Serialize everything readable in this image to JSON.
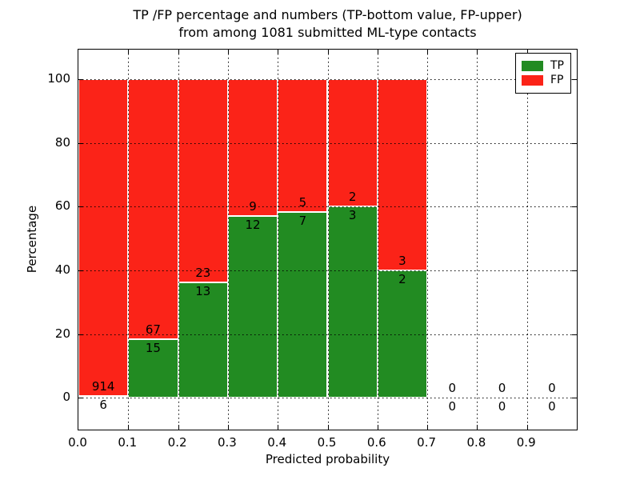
{
  "figure": {
    "title_line1": "TP /FP percentage and numbers (TP-bottom value, FP-upper)",
    "title_line2": "from among 1081 submitted ML-type contacts"
  },
  "chart_data": {
    "type": "bar",
    "stacked": true,
    "normalized_to": 100,
    "title": "TP /FP percentage and numbers (TP-bottom value, FP-upper) from among 1081 submitted ML-type contacts",
    "xlabel": "Predicted probability",
    "ylabel": "Percentage",
    "xlim": [
      0.0,
      1.0
    ],
    "ylim": [
      -10,
      109.3
    ],
    "xticks": [
      "0.0",
      "0.1",
      "0.2",
      "0.3",
      "0.4",
      "0.5",
      "0.6",
      "0.7",
      "0.8",
      "0.9"
    ],
    "yticks": [
      0,
      20,
      40,
      60,
      80,
      100
    ],
    "grid": "dotted",
    "colors": {
      "tp": "#228B22",
      "fp": "#FB2318",
      "bar_edge": "#ffffff",
      "axes": "#000000"
    },
    "legend": {
      "position": "upper right",
      "entries": [
        {
          "label": "TP",
          "color": "#228B22"
        },
        {
          "label": "FP",
          "color": "#FB2318"
        }
      ]
    },
    "bins": [
      {
        "x0": 0.0,
        "x1": 0.1,
        "tp": 6,
        "fp": 914,
        "tp_pct": 0.65
      },
      {
        "x0": 0.1,
        "x1": 0.2,
        "tp": 15,
        "fp": 67,
        "tp_pct": 18.29
      },
      {
        "x0": 0.2,
        "x1": 0.3,
        "tp": 13,
        "fp": 23,
        "tp_pct": 36.11
      },
      {
        "x0": 0.3,
        "x1": 0.4,
        "tp": 12,
        "fp": 9,
        "tp_pct": 57.14
      },
      {
        "x0": 0.4,
        "x1": 0.5,
        "tp": 7,
        "fp": 5,
        "tp_pct": 58.33
      },
      {
        "x0": 0.5,
        "x1": 0.6,
        "tp": 3,
        "fp": 2,
        "tp_pct": 60.0
      },
      {
        "x0": 0.6,
        "x1": 0.7,
        "tp": 2,
        "fp": 3,
        "tp_pct": 40.0
      },
      {
        "x0": 0.7,
        "x1": 0.8,
        "tp": 0,
        "fp": 0,
        "tp_pct": 0
      },
      {
        "x0": 0.8,
        "x1": 0.9,
        "tp": 0,
        "fp": 0,
        "tp_pct": 0
      },
      {
        "x0": 0.9,
        "x1": 1.0,
        "tp": 0,
        "fp": 0,
        "tp_pct": 0
      }
    ]
  }
}
